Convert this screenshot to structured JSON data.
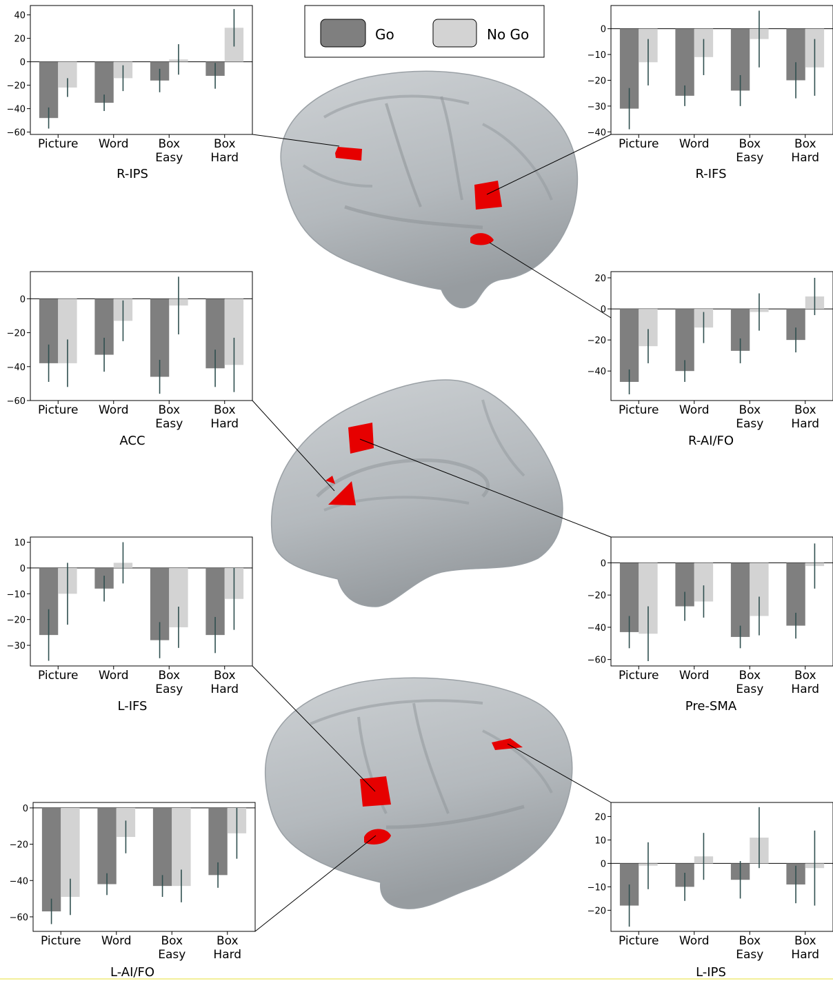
{
  "legend": {
    "items": [
      {
        "label": "Go",
        "color": "#7f7f7f"
      },
      {
        "label": "No Go",
        "color": "#d3d3d3"
      }
    ]
  },
  "colors": {
    "go": "#7f7f7f",
    "nogo": "#d3d3d3",
    "error_bar": "#2f4f4f",
    "roi": "#e60000",
    "brain": "#b7bcc0"
  },
  "chart_data": [
    {
      "type": "bar",
      "title": "R-IPS",
      "categories": [
        [
          "Picture"
        ],
        [
          "Word"
        ],
        [
          "Box",
          "Easy"
        ],
        [
          "Box",
          "Hard"
        ]
      ],
      "ylim": [
        -62,
        48
      ],
      "yticks": [
        40,
        20,
        0,
        -20,
        -40,
        -60
      ],
      "series": [
        {
          "name": "Go",
          "values": [
            -48,
            -35,
            -16,
            -12
          ],
          "errors": [
            9,
            7,
            10,
            11
          ]
        },
        {
          "name": "No Go",
          "values": [
            -22,
            -14,
            2,
            29
          ],
          "errors": [
            8,
            11,
            13,
            16
          ]
        }
      ]
    },
    {
      "type": "bar",
      "title": "R-IFS",
      "categories": [
        [
          "Picture"
        ],
        [
          "Word"
        ],
        [
          "Box",
          "Easy"
        ],
        [
          "Box",
          "Hard"
        ]
      ],
      "ylim": [
        -41,
        9
      ],
      "yticks": [
        0,
        -10,
        -20,
        -30,
        -40
      ],
      "series": [
        {
          "name": "Go",
          "values": [
            -31,
            -26,
            -24,
            -20
          ],
          "errors": [
            8,
            4,
            6,
            7
          ]
        },
        {
          "name": "No Go",
          "values": [
            -13,
            -11,
            -4,
            -15
          ],
          "errors": [
            9,
            7,
            11,
            11
          ]
        }
      ]
    },
    {
      "type": "bar",
      "title": "ACC",
      "categories": [
        [
          "Picture"
        ],
        [
          "Word"
        ],
        [
          "Box",
          "Easy"
        ],
        [
          "Box",
          "Hard"
        ]
      ],
      "ylim": [
        -60,
        16
      ],
      "yticks": [
        0,
        -20,
        -40,
        -60
      ],
      "series": [
        {
          "name": "Go",
          "values": [
            -38,
            -33,
            -46,
            -41
          ],
          "errors": [
            11,
            10,
            10,
            11
          ]
        },
        {
          "name": "No Go",
          "values": [
            -38,
            -13,
            -4,
            -39
          ],
          "errors": [
            14,
            12,
            17,
            16
          ]
        }
      ]
    },
    {
      "type": "bar",
      "title": "R-AI/FO",
      "categories": [
        [
          "Picture"
        ],
        [
          "Word"
        ],
        [
          "Box",
          "Easy"
        ],
        [
          "Box",
          "Hard"
        ]
      ],
      "ylim": [
        -59,
        24
      ],
      "yticks": [
        20,
        0,
        -20,
        -40
      ],
      "series": [
        {
          "name": "Go",
          "values": [
            -47,
            -40,
            -27,
            -20
          ],
          "errors": [
            8,
            7,
            8,
            8
          ]
        },
        {
          "name": "No Go",
          "values": [
            -24,
            -12,
            -2,
            8
          ],
          "errors": [
            11,
            10,
            12,
            12
          ]
        }
      ]
    },
    {
      "type": "bar",
      "title": "L-IFS",
      "categories": [
        [
          "Picture"
        ],
        [
          "Word"
        ],
        [
          "Box",
          "Easy"
        ],
        [
          "Box",
          "Hard"
        ]
      ],
      "ylim": [
        -38,
        12
      ],
      "yticks": [
        10,
        0,
        -10,
        -20,
        -30
      ],
      "series": [
        {
          "name": "Go",
          "values": [
            -26,
            -8,
            -28,
            -26
          ],
          "errors": [
            10,
            5,
            7,
            7
          ]
        },
        {
          "name": "No Go",
          "values": [
            -10,
            2,
            -23,
            -12
          ],
          "errors": [
            12,
            8,
            8,
            12
          ]
        }
      ]
    },
    {
      "type": "bar",
      "title": "Pre-SMA",
      "categories": [
        [
          "Picture"
        ],
        [
          "Word"
        ],
        [
          "Box",
          "Easy"
        ],
        [
          "Box",
          "Hard"
        ]
      ],
      "ylim": [
        -64,
        16
      ],
      "yticks": [
        0,
        -20,
        -40,
        -60
      ],
      "series": [
        {
          "name": "Go",
          "values": [
            -43,
            -27,
            -46,
            -39
          ],
          "errors": [
            10,
            9,
            7,
            8
          ]
        },
        {
          "name": "No Go",
          "values": [
            -44,
            -24,
            -33,
            -2
          ],
          "errors": [
            17,
            10,
            12,
            14
          ]
        }
      ]
    },
    {
      "type": "bar",
      "title": "L-AI/FO",
      "categories": [
        [
          "Picture"
        ],
        [
          "Word"
        ],
        [
          "Box",
          "Easy"
        ],
        [
          "Box",
          "Hard"
        ]
      ],
      "ylim": [
        -68,
        3
      ],
      "yticks": [
        0,
        -20,
        -40,
        -60
      ],
      "series": [
        {
          "name": "Go",
          "values": [
            -57,
            -42,
            -43,
            -37
          ],
          "errors": [
            7,
            6,
            6,
            7
          ]
        },
        {
          "name": "No Go",
          "values": [
            -49,
            -16,
            -43,
            -14
          ],
          "errors": [
            10,
            9,
            9,
            14
          ]
        }
      ]
    },
    {
      "type": "bar",
      "title": "L-IPS",
      "categories": [
        [
          "Picture"
        ],
        [
          "Word"
        ],
        [
          "Box",
          "Easy"
        ],
        [
          "Box",
          "Hard"
        ]
      ],
      "ylim": [
        -29,
        26
      ],
      "yticks": [
        20,
        10,
        0,
        -10,
        -20
      ],
      "series": [
        {
          "name": "Go",
          "values": [
            -18,
            -10,
            -7,
            -9
          ],
          "errors": [
            9,
            6,
            8,
            8
          ]
        },
        {
          "name": "No Go",
          "values": [
            -1,
            3,
            11,
            -2
          ],
          "errors": [
            10,
            10,
            13,
            16
          ]
        }
      ]
    }
  ]
}
